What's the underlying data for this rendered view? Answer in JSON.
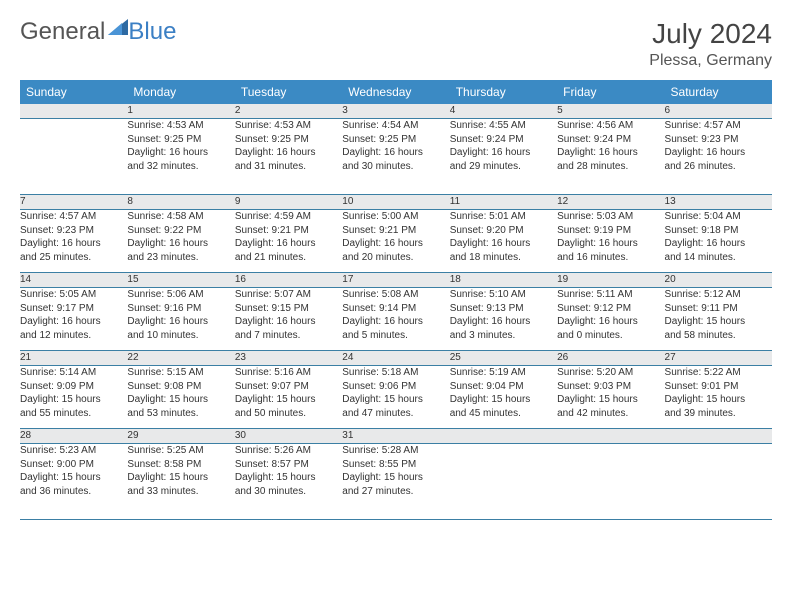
{
  "brand": {
    "part1": "General",
    "part2": "Blue"
  },
  "title": "July 2024",
  "location": "Plessa, Germany",
  "colors": {
    "header_bg": "#3b8ac4",
    "header_text": "#ffffff",
    "daynum_bg": "#e8e9ea",
    "row_border": "#3b7fa4",
    "brand_gray": "#555555",
    "brand_blue": "#3b7fc4"
  },
  "weekdays": [
    "Sunday",
    "Monday",
    "Tuesday",
    "Wednesday",
    "Thursday",
    "Friday",
    "Saturday"
  ],
  "weeks": [
    {
      "nums": [
        "",
        "1",
        "2",
        "3",
        "4",
        "5",
        "6"
      ],
      "cells": [
        null,
        {
          "sr": "Sunrise: 4:53 AM",
          "ss": "Sunset: 9:25 PM",
          "d1": "Daylight: 16 hours",
          "d2": "and 32 minutes."
        },
        {
          "sr": "Sunrise: 4:53 AM",
          "ss": "Sunset: 9:25 PM",
          "d1": "Daylight: 16 hours",
          "d2": "and 31 minutes."
        },
        {
          "sr": "Sunrise: 4:54 AM",
          "ss": "Sunset: 9:25 PM",
          "d1": "Daylight: 16 hours",
          "d2": "and 30 minutes."
        },
        {
          "sr": "Sunrise: 4:55 AM",
          "ss": "Sunset: 9:24 PM",
          "d1": "Daylight: 16 hours",
          "d2": "and 29 minutes."
        },
        {
          "sr": "Sunrise: 4:56 AM",
          "ss": "Sunset: 9:24 PM",
          "d1": "Daylight: 16 hours",
          "d2": "and 28 minutes."
        },
        {
          "sr": "Sunrise: 4:57 AM",
          "ss": "Sunset: 9:23 PM",
          "d1": "Daylight: 16 hours",
          "d2": "and 26 minutes."
        }
      ]
    },
    {
      "nums": [
        "7",
        "8",
        "9",
        "10",
        "11",
        "12",
        "13"
      ],
      "cells": [
        {
          "sr": "Sunrise: 4:57 AM",
          "ss": "Sunset: 9:23 PM",
          "d1": "Daylight: 16 hours",
          "d2": "and 25 minutes."
        },
        {
          "sr": "Sunrise: 4:58 AM",
          "ss": "Sunset: 9:22 PM",
          "d1": "Daylight: 16 hours",
          "d2": "and 23 minutes."
        },
        {
          "sr": "Sunrise: 4:59 AM",
          "ss": "Sunset: 9:21 PM",
          "d1": "Daylight: 16 hours",
          "d2": "and 21 minutes."
        },
        {
          "sr": "Sunrise: 5:00 AM",
          "ss": "Sunset: 9:21 PM",
          "d1": "Daylight: 16 hours",
          "d2": "and 20 minutes."
        },
        {
          "sr": "Sunrise: 5:01 AM",
          "ss": "Sunset: 9:20 PM",
          "d1": "Daylight: 16 hours",
          "d2": "and 18 minutes."
        },
        {
          "sr": "Sunrise: 5:03 AM",
          "ss": "Sunset: 9:19 PM",
          "d1": "Daylight: 16 hours",
          "d2": "and 16 minutes."
        },
        {
          "sr": "Sunrise: 5:04 AM",
          "ss": "Sunset: 9:18 PM",
          "d1": "Daylight: 16 hours",
          "d2": "and 14 minutes."
        }
      ]
    },
    {
      "nums": [
        "14",
        "15",
        "16",
        "17",
        "18",
        "19",
        "20"
      ],
      "cells": [
        {
          "sr": "Sunrise: 5:05 AM",
          "ss": "Sunset: 9:17 PM",
          "d1": "Daylight: 16 hours",
          "d2": "and 12 minutes."
        },
        {
          "sr": "Sunrise: 5:06 AM",
          "ss": "Sunset: 9:16 PM",
          "d1": "Daylight: 16 hours",
          "d2": "and 10 minutes."
        },
        {
          "sr": "Sunrise: 5:07 AM",
          "ss": "Sunset: 9:15 PM",
          "d1": "Daylight: 16 hours",
          "d2": "and 7 minutes."
        },
        {
          "sr": "Sunrise: 5:08 AM",
          "ss": "Sunset: 9:14 PM",
          "d1": "Daylight: 16 hours",
          "d2": "and 5 minutes."
        },
        {
          "sr": "Sunrise: 5:10 AM",
          "ss": "Sunset: 9:13 PM",
          "d1": "Daylight: 16 hours",
          "d2": "and 3 minutes."
        },
        {
          "sr": "Sunrise: 5:11 AM",
          "ss": "Sunset: 9:12 PM",
          "d1": "Daylight: 16 hours",
          "d2": "and 0 minutes."
        },
        {
          "sr": "Sunrise: 5:12 AM",
          "ss": "Sunset: 9:11 PM",
          "d1": "Daylight: 15 hours",
          "d2": "and 58 minutes."
        }
      ]
    },
    {
      "nums": [
        "21",
        "22",
        "23",
        "24",
        "25",
        "26",
        "27"
      ],
      "cells": [
        {
          "sr": "Sunrise: 5:14 AM",
          "ss": "Sunset: 9:09 PM",
          "d1": "Daylight: 15 hours",
          "d2": "and 55 minutes."
        },
        {
          "sr": "Sunrise: 5:15 AM",
          "ss": "Sunset: 9:08 PM",
          "d1": "Daylight: 15 hours",
          "d2": "and 53 minutes."
        },
        {
          "sr": "Sunrise: 5:16 AM",
          "ss": "Sunset: 9:07 PM",
          "d1": "Daylight: 15 hours",
          "d2": "and 50 minutes."
        },
        {
          "sr": "Sunrise: 5:18 AM",
          "ss": "Sunset: 9:06 PM",
          "d1": "Daylight: 15 hours",
          "d2": "and 47 minutes."
        },
        {
          "sr": "Sunrise: 5:19 AM",
          "ss": "Sunset: 9:04 PM",
          "d1": "Daylight: 15 hours",
          "d2": "and 45 minutes."
        },
        {
          "sr": "Sunrise: 5:20 AM",
          "ss": "Sunset: 9:03 PM",
          "d1": "Daylight: 15 hours",
          "d2": "and 42 minutes."
        },
        {
          "sr": "Sunrise: 5:22 AM",
          "ss": "Sunset: 9:01 PM",
          "d1": "Daylight: 15 hours",
          "d2": "and 39 minutes."
        }
      ]
    },
    {
      "nums": [
        "28",
        "29",
        "30",
        "31",
        "",
        "",
        ""
      ],
      "cells": [
        {
          "sr": "Sunrise: 5:23 AM",
          "ss": "Sunset: 9:00 PM",
          "d1": "Daylight: 15 hours",
          "d2": "and 36 minutes."
        },
        {
          "sr": "Sunrise: 5:25 AM",
          "ss": "Sunset: 8:58 PM",
          "d1": "Daylight: 15 hours",
          "d2": "and 33 minutes."
        },
        {
          "sr": "Sunrise: 5:26 AM",
          "ss": "Sunset: 8:57 PM",
          "d1": "Daylight: 15 hours",
          "d2": "and 30 minutes."
        },
        {
          "sr": "Sunrise: 5:28 AM",
          "ss": "Sunset: 8:55 PM",
          "d1": "Daylight: 15 hours",
          "d2": "and 27 minutes."
        },
        null,
        null,
        null
      ]
    }
  ]
}
